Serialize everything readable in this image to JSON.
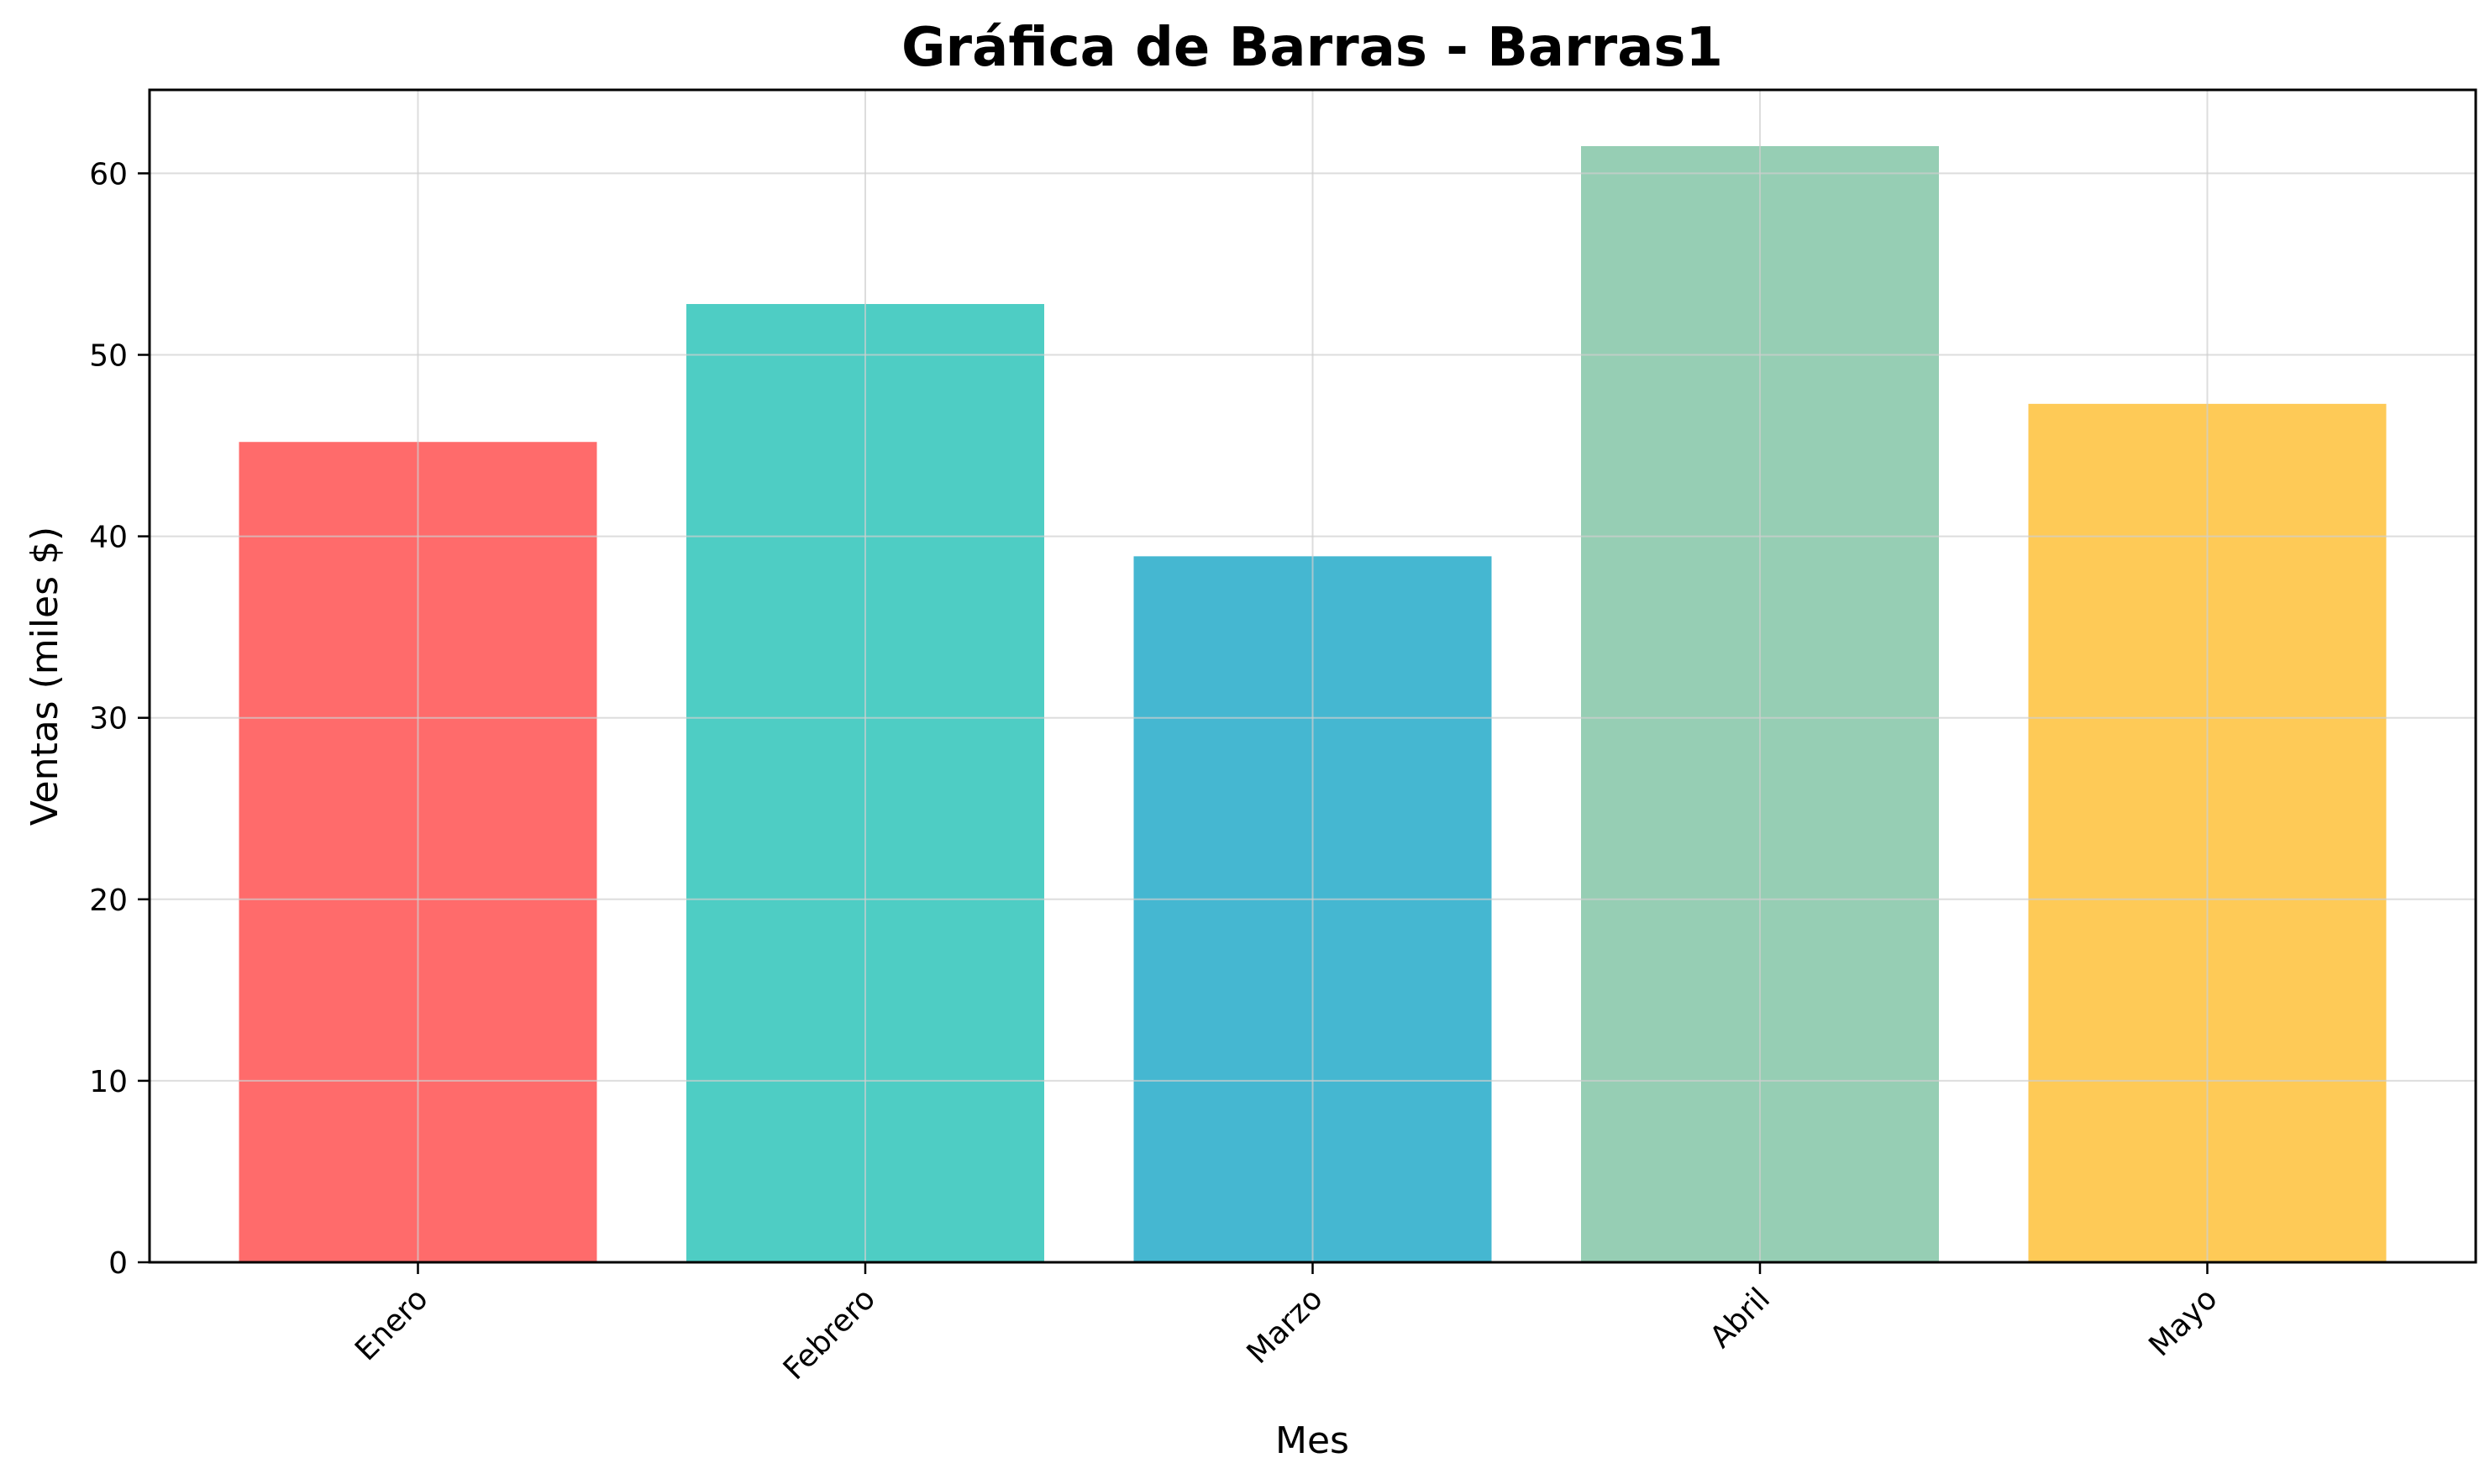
{
  "chart_data": {
    "type": "bar",
    "title": "Gráfica de Barras - Barras1",
    "xlabel": "Mes",
    "ylabel": "Ventas (miles $)",
    "categories": [
      "Enero",
      "Febrero",
      "Marzo",
      "Abril",
      "Mayo"
    ],
    "values": [
      45.2,
      52.8,
      38.9,
      61.5,
      47.3
    ],
    "colors": [
      "#ff6b6b",
      "#4ecdc4",
      "#45b7d1",
      "#96ceb4",
      "#feca57"
    ],
    "ylim": [
      0,
      64.6
    ],
    "yticks": [
      0,
      10,
      20,
      30,
      40,
      50,
      60
    ],
    "grid": true,
    "xtick_rotation": -45
  }
}
